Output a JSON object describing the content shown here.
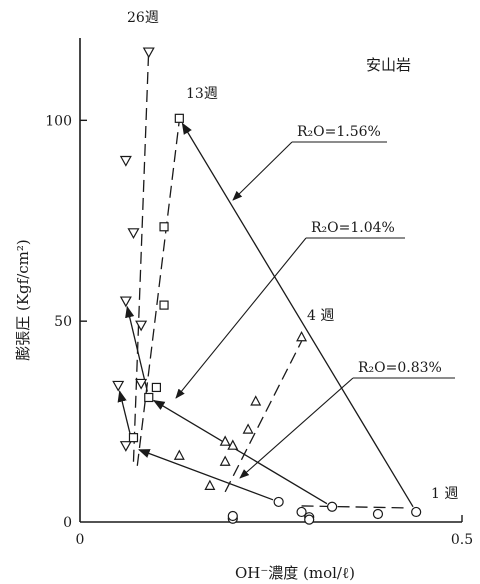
{
  "chart_data": {
    "type": "scatter",
    "title": "",
    "rock_label": "安山岩",
    "xlabel": "OH⁻濃度 (mol/ℓ)",
    "ylabel": "膨張圧 (Kgf/cm²)",
    "xlim": [
      0,
      0.5
    ],
    "ylim": [
      0,
      120
    ],
    "x_ticks": [
      {
        "value": 0,
        "label": "0"
      },
      {
        "value": 0.5,
        "label": "0.5"
      }
    ],
    "y_ticks": [
      {
        "value": 0,
        "label": "0"
      },
      {
        "value": 50,
        "label": "50"
      },
      {
        "value": 100,
        "label": "100"
      }
    ],
    "grid": false,
    "series": [
      {
        "name": "R₂O=0.83%",
        "marker": "circle",
        "points": [
          {
            "x": 0.2,
            "y": 0.8
          },
          {
            "x": 0.2,
            "y": 1.5
          },
          {
            "x": 0.29,
            "y": 2.5
          },
          {
            "x": 0.3,
            "y": 1.2
          },
          {
            "x": 0.3,
            "y": 0.6
          },
          {
            "x": 0.26,
            "y": 5
          },
          {
            "x": 0.33,
            "y": 3.8
          },
          {
            "x": 0.39,
            "y": 2
          },
          {
            "x": 0.44,
            "y": 2.5
          }
        ]
      },
      {
        "name": "R₂O=1.04%",
        "marker": "triangle",
        "points": [
          {
            "x": 0.13,
            "y": 16.5
          },
          {
            "x": 0.17,
            "y": 9
          },
          {
            "x": 0.19,
            "y": 15
          },
          {
            "x": 0.19,
            "y": 20
          },
          {
            "x": 0.2,
            "y": 19
          },
          {
            "x": 0.22,
            "y": 23
          },
          {
            "x": 0.23,
            "y": 30
          },
          {
            "x": 0.29,
            "y": 46
          }
        ]
      },
      {
        "name": "R₂O=1.56%",
        "marker": "inverted-triangle",
        "points": [
          {
            "x": 0.06,
            "y": 19
          },
          {
            "x": 0.05,
            "y": 34
          },
          {
            "x": 0.08,
            "y": 34.5
          },
          {
            "x": 0.08,
            "y": 49
          },
          {
            "x": 0.06,
            "y": 55
          },
          {
            "x": 0.07,
            "y": 72
          },
          {
            "x": 0.06,
            "y": 90
          },
          {
            "x": 0.09,
            "y": 117
          }
        ]
      },
      {
        "name": "",
        "marker": "square",
        "points": [
          {
            "x": 0.07,
            "y": 21
          },
          {
            "x": 0.09,
            "y": 31
          },
          {
            "x": 0.1,
            "y": 33.5
          },
          {
            "x": 0.11,
            "y": 54
          },
          {
            "x": 0.11,
            "y": 73.5
          },
          {
            "x": 0.13,
            "y": 100.5
          }
        ]
      }
    ],
    "dashed_trends": [
      {
        "points": [
          [
            0.29,
            4.0
          ],
          [
            0.43,
            3.5
          ]
        ]
      },
      {
        "points": [
          [
            0.19,
            7.5
          ],
          [
            0.29,
            45
          ]
        ]
      },
      {
        "points": [
          [
            0.075,
            14
          ],
          [
            0.13,
            100
          ]
        ]
      },
      {
        "points": [
          [
            0.07,
            15
          ],
          [
            0.09,
            118
          ]
        ]
      }
    ],
    "arrow_paths": [
      {
        "points": [
          [
            0.44,
            2.5
          ],
          [
            0.13,
            100.5
          ]
        ]
      },
      {
        "points": [
          [
            0.33,
            3.8
          ],
          [
            0.09,
            31
          ]
        ]
      },
      {
        "points": [
          [
            0.26,
            5
          ],
          [
            0.07,
            18.5
          ]
        ]
      },
      {
        "points": [
          [
            0.09,
            31
          ],
          [
            0.06,
            55
          ]
        ]
      },
      {
        "points": [
          [
            0.07,
            18.5
          ],
          [
            0.05,
            34
          ]
        ]
      }
    ],
    "annotations": [
      {
        "text": "26週"
      },
      {
        "text": "13週"
      },
      {
        "text": "4 週"
      },
      {
        "text": "1 週"
      },
      {
        "text": "R₂O=1.56%"
      },
      {
        "text": "R₂O=1.04%"
      },
      {
        "text": "R₂O=0.83%"
      }
    ]
  }
}
